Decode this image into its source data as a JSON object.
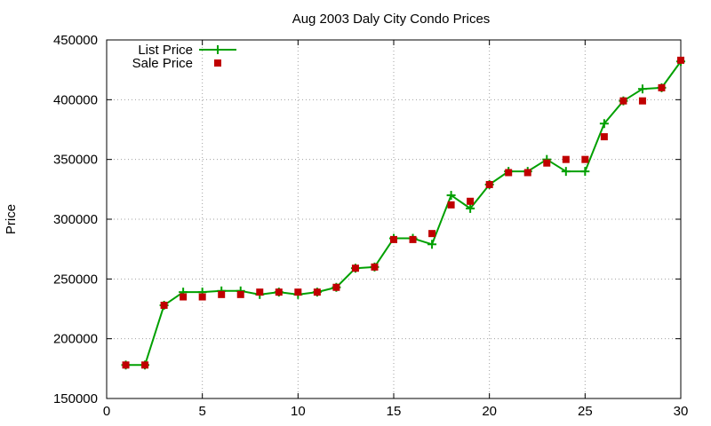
{
  "chart_data": {
    "type": "line",
    "title": "Aug 2003 Daly City Condo Prices",
    "xlabel": "",
    "ylabel": "Price",
    "xlim": [
      0,
      30
    ],
    "ylim": [
      150000,
      450000
    ],
    "x_ticks": [
      0,
      5,
      10,
      15,
      20,
      25,
      30
    ],
    "y_ticks": [
      150000,
      200000,
      250000,
      300000,
      350000,
      400000,
      450000
    ],
    "grid": true,
    "legend_position": "top-left",
    "series": [
      {
        "name": "List Price",
        "style": "line+cross",
        "color": "#00a000",
        "x": [
          1,
          2,
          3,
          4,
          5,
          6,
          7,
          8,
          9,
          10,
          11,
          12,
          13,
          14,
          15,
          16,
          17,
          18,
          19,
          20,
          21,
          22,
          23,
          24,
          25,
          26,
          27,
          28,
          29,
          30
        ],
        "values": [
          178000,
          178000,
          228000,
          239000,
          239000,
          240000,
          240000,
          237000,
          239000,
          237000,
          239000,
          243000,
          259000,
          260000,
          284000,
          284000,
          279000,
          320000,
          309000,
          329000,
          340000,
          340000,
          350000,
          340000,
          340000,
          380000,
          399000,
          409000,
          410000,
          432000
        ]
      },
      {
        "name": "Sale Price",
        "style": "square",
        "color": "#c00000",
        "x": [
          1,
          2,
          3,
          4,
          5,
          6,
          7,
          8,
          9,
          10,
          11,
          12,
          13,
          14,
          15,
          16,
          17,
          18,
          19,
          20,
          21,
          22,
          23,
          24,
          25,
          26,
          27,
          28,
          29,
          30
        ],
        "values": [
          178000,
          178000,
          228000,
          235000,
          235000,
          237000,
          237000,
          239000,
          239000,
          239000,
          239000,
          243000,
          259000,
          260000,
          283000,
          283000,
          288000,
          312000,
          315000,
          329000,
          339000,
          339000,
          347000,
          350000,
          350000,
          369000,
          399000,
          399000,
          410000,
          433000
        ]
      }
    ]
  }
}
